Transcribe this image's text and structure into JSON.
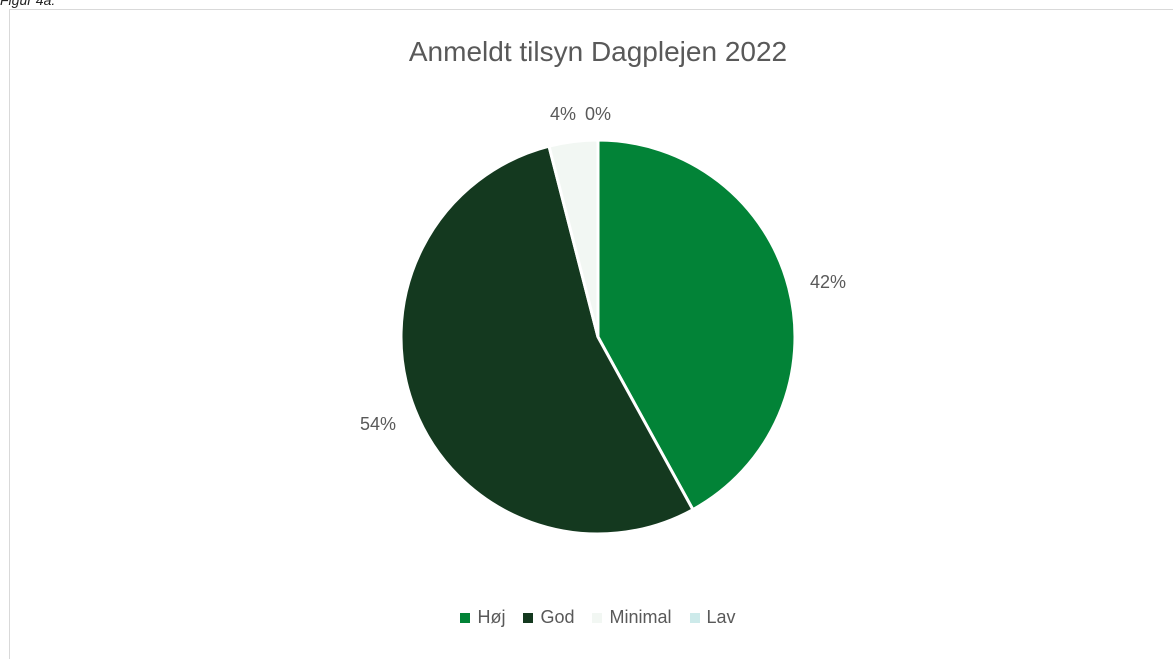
{
  "caption": "Figur 4a:",
  "chart_data": {
    "type": "pie",
    "title": "Anmeldt tilsyn Dagplejen 2022",
    "categories": [
      "Høj",
      "God",
      "Minimal",
      "Lav"
    ],
    "values": [
      42,
      54,
      4,
      0
    ],
    "labels": [
      "42%",
      "54%",
      "4%",
      "0%"
    ],
    "colors": [
      "#028337",
      "#14391F",
      "#F2F7F3",
      "#CDEAEA"
    ],
    "legend_position": "bottom"
  }
}
